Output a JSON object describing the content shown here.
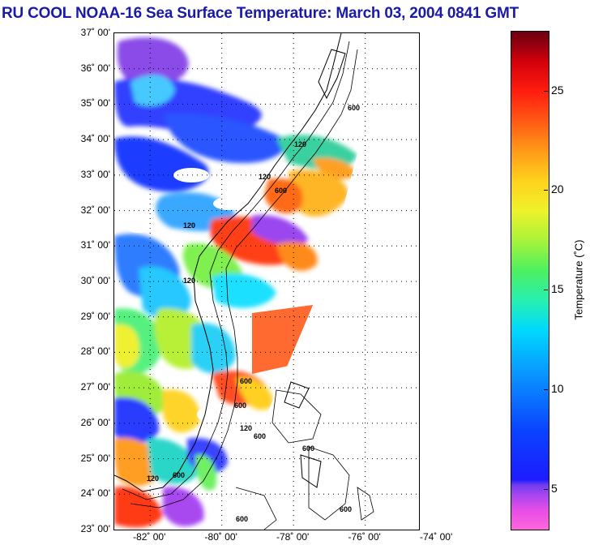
{
  "title": "RU COOL  NOAA-16  Sea Surface Temperature:  March 03, 2004 0841 GMT",
  "map": {
    "lat_labels": [
      "37˚ 00'",
      "36˚ 00'",
      "35˚ 00'",
      "34˚ 00'",
      "33˚ 00'",
      "32˚ 00'",
      "31˚ 00'",
      "30˚ 00'",
      "29˚ 00'",
      "28˚ 00'",
      "27˚ 00'",
      "26˚ 00'",
      "25˚ 00'",
      "24˚ 00'",
      "23˚ 00'"
    ],
    "lon_labels": [
      "-82˚ 00'",
      "-80˚ 00'",
      "-78˚ 00'",
      "-76˚ 00'",
      "-74˚ 00'"
    ],
    "lat_range": [
      23,
      37
    ],
    "lon_range": [
      -83,
      -74.5
    ],
    "contour_labels": [
      "600",
      "120",
      "120",
      "600",
      "120",
      "120",
      "600",
      "600",
      "120",
      "600",
      "120",
      "600",
      "600",
      "600",
      "600"
    ]
  },
  "colorbar": {
    "label": "Temperature (˚C)",
    "ticks": [
      "25",
      "20",
      "15",
      "10",
      "5"
    ],
    "tick_values": [
      25,
      20,
      15,
      10,
      5
    ],
    "range": [
      3,
      28
    ]
  }
}
